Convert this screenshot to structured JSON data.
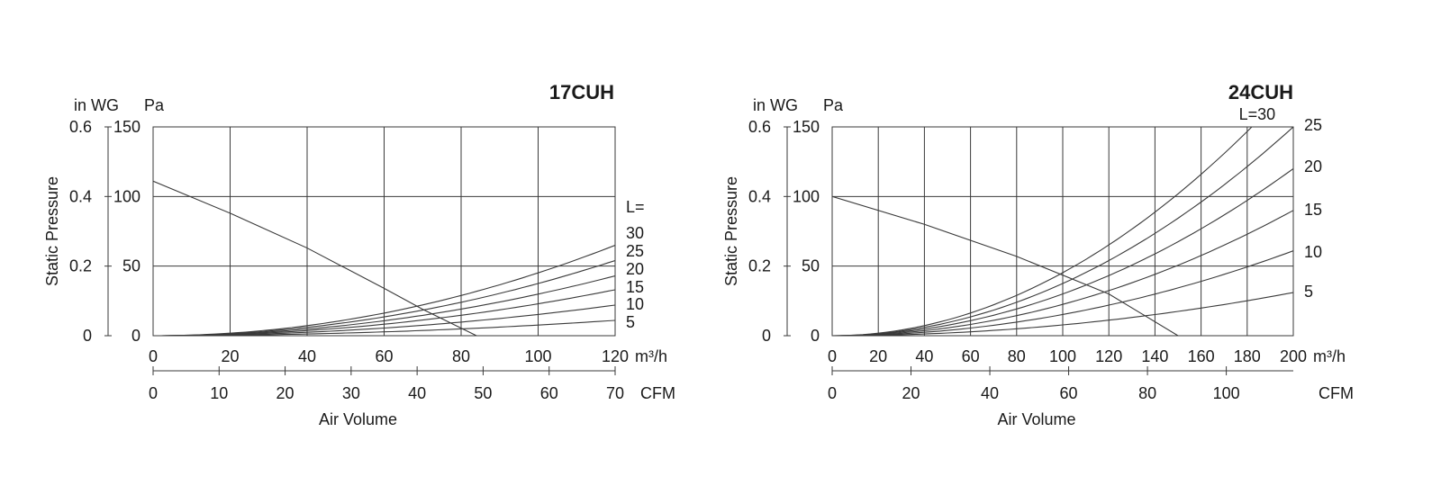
{
  "chart_data": [
    {
      "type": "line",
      "title": "17CUH",
      "ylabel": "Static Pressure",
      "xlabel": "Air Volume",
      "y_units": [
        "in WG",
        "Pa"
      ],
      "x_units": [
        "m³/h",
        "CFM"
      ],
      "xlim": [
        0,
        120
      ],
      "ylim": [
        0,
        150
      ],
      "x_ticks": [
        0,
        20,
        40,
        60,
        80,
        100,
        120
      ],
      "cfm_ticks": [
        0,
        10,
        20,
        30,
        40,
        50,
        60,
        70
      ],
      "y_ticks_pa": [
        0,
        50,
        100,
        150
      ],
      "y_ticks_inwg": [
        0,
        0.2,
        0.4,
        0.6
      ],
      "legend_prefix": "L=",
      "fan_curve": [
        [
          0,
          111
        ],
        [
          20,
          88
        ],
        [
          40,
          63
        ],
        [
          60,
          34
        ],
        [
          70,
          19
        ],
        [
          84,
          0
        ]
      ],
      "series": [
        {
          "name": "5",
          "values": [
            [
              0,
              0
            ],
            [
              120,
              11
            ]
          ]
        },
        {
          "name": "10",
          "values": [
            [
              0,
              0
            ],
            [
              120,
              22
            ]
          ]
        },
        {
          "name": "15",
          "values": [
            [
              0,
              0
            ],
            [
              120,
              33
            ]
          ]
        },
        {
          "name": "20",
          "values": [
            [
              0,
              0
            ],
            [
              120,
              43
            ]
          ]
        },
        {
          "name": "25",
          "values": [
            [
              0,
              0
            ],
            [
              120,
              54
            ]
          ]
        },
        {
          "name": "30",
          "values": [
            [
              0,
              0
            ],
            [
              120,
              65
            ]
          ]
        }
      ],
      "grid": true
    },
    {
      "type": "line",
      "title": "24CUH",
      "ylabel": "Static Pressure",
      "xlabel": "Air Volume",
      "y_units": [
        "in WG",
        "Pa"
      ],
      "x_units": [
        "m³/h",
        "CFM"
      ],
      "xlim": [
        0,
        200
      ],
      "ylim": [
        0,
        150
      ],
      "x_ticks": [
        0,
        20,
        40,
        60,
        80,
        100,
        120,
        140,
        160,
        180,
        200
      ],
      "cfm_ticks": [
        0,
        20,
        40,
        60,
        80,
        100
      ],
      "y_ticks_pa": [
        0,
        50,
        100,
        150
      ],
      "y_ticks_inwg": [
        0,
        0.2,
        0.4,
        0.6
      ],
      "legend_prefix": "L=",
      "fan_curve": [
        [
          0,
          100
        ],
        [
          40,
          80
        ],
        [
          80,
          57
        ],
        [
          120,
          30
        ],
        [
          135,
          15
        ],
        [
          150,
          0
        ]
      ],
      "series": [
        {
          "name": "5",
          "values": [
            [
              0,
              0
            ],
            [
              200,
              31
            ]
          ]
        },
        {
          "name": "10",
          "values": [
            [
              0,
              0
            ],
            [
              200,
              61
            ]
          ]
        },
        {
          "name": "15",
          "values": [
            [
              0,
              0
            ],
            [
              200,
              90
            ]
          ]
        },
        {
          "name": "20",
          "values": [
            [
              0,
              0
            ],
            [
              200,
              120
            ]
          ]
        },
        {
          "name": "25",
          "values": [
            [
              0,
              0
            ],
            [
              200,
              150
            ]
          ]
        },
        {
          "name": "30",
          "values": [
            [
              0,
              0
            ],
            [
              182,
              150
            ]
          ]
        }
      ],
      "grid": true
    }
  ]
}
